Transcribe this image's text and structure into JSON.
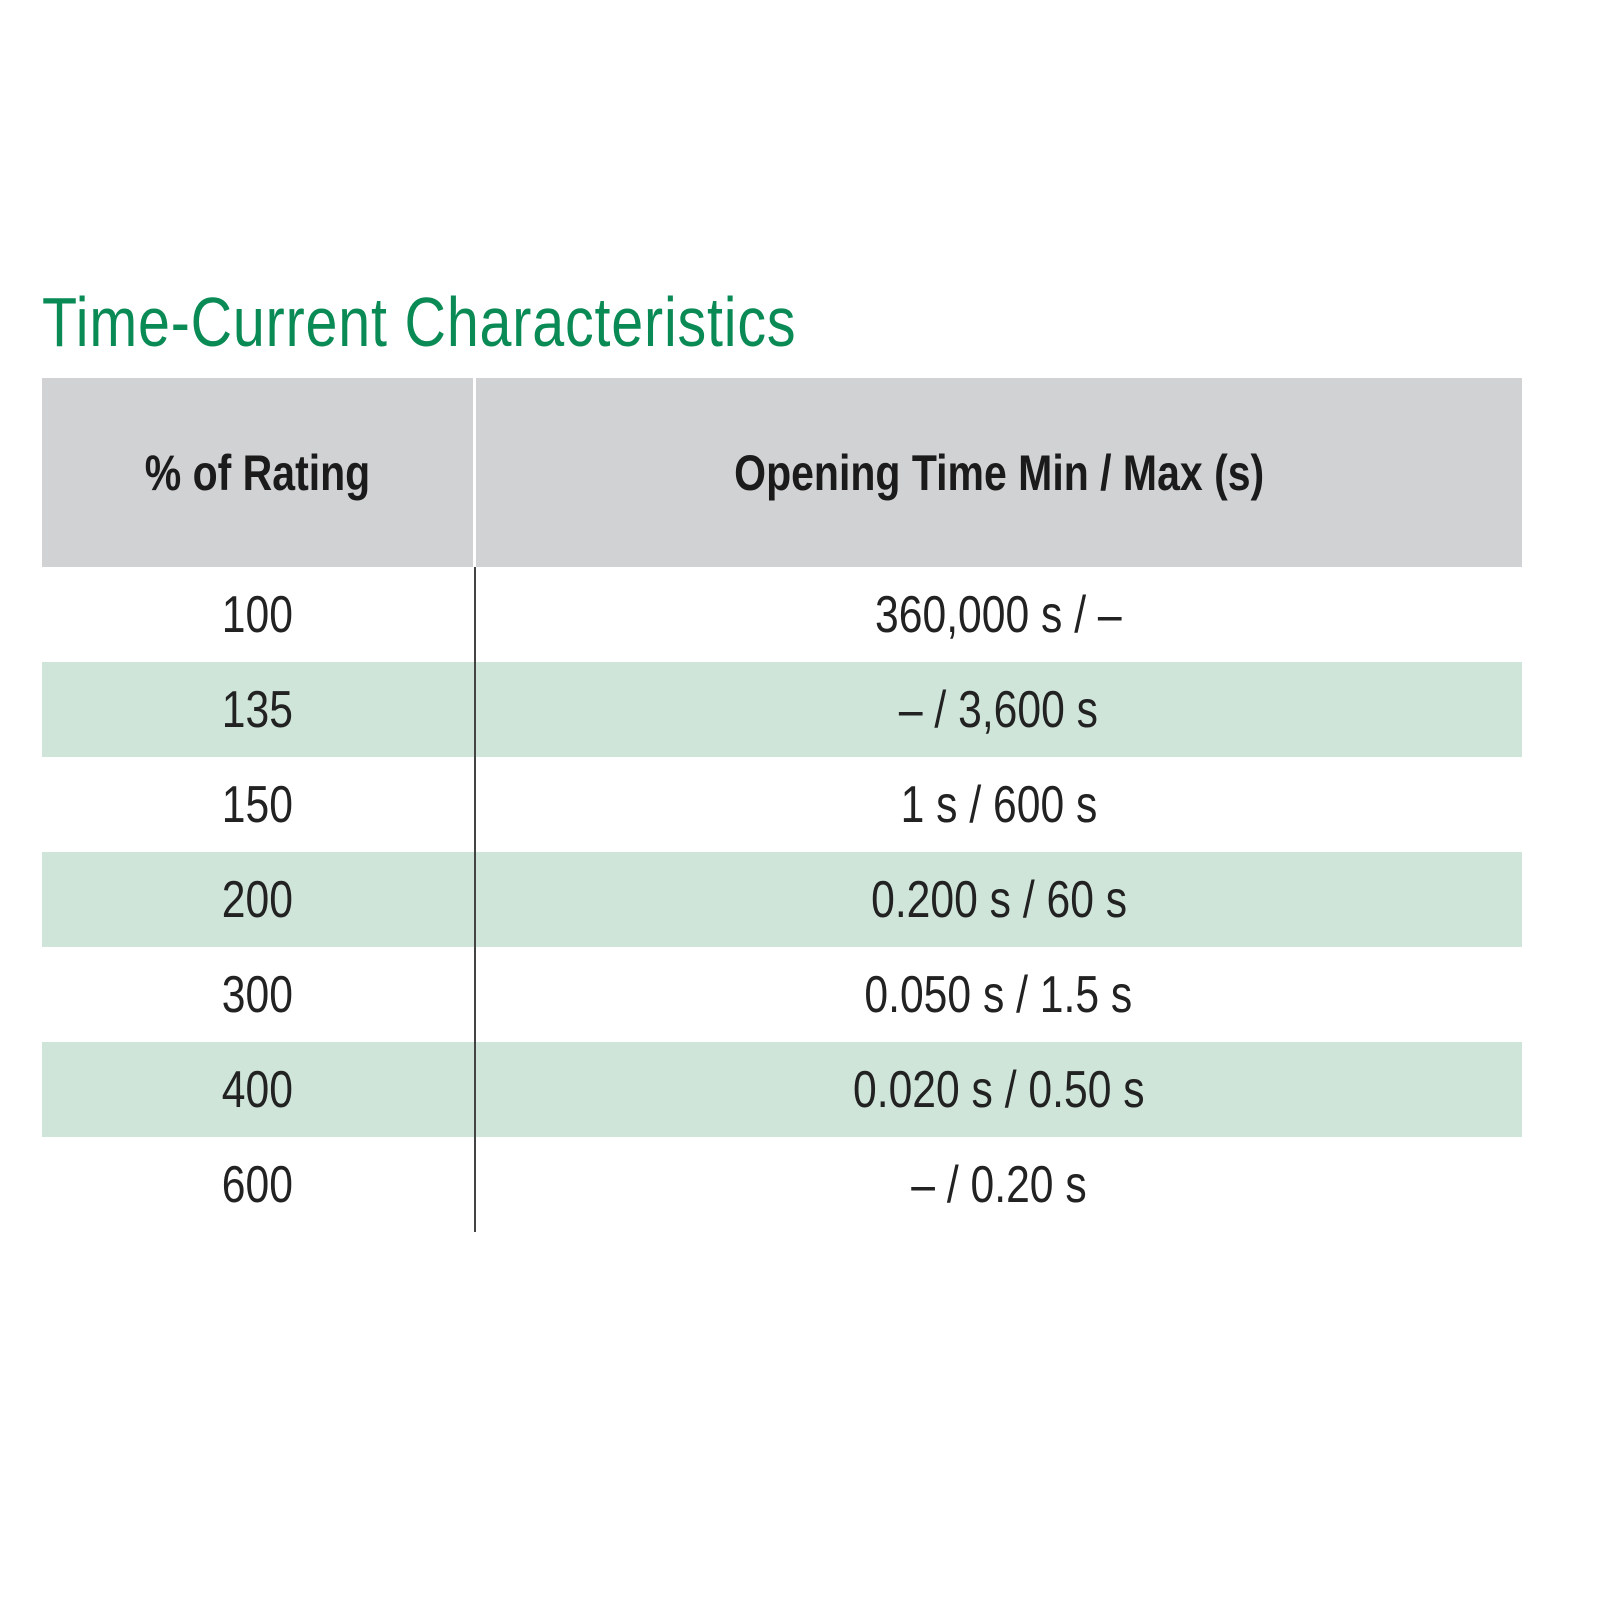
{
  "title": "Time-Current Characteristics",
  "colors": {
    "title": "#0a8a55",
    "header_bg": "#d1d2d4",
    "stripe_bg": "#cfe5d9"
  },
  "table": {
    "headers": [
      "% of Rating",
      "Opening Time Min / Max (s)"
    ],
    "rows": [
      [
        "100",
        "360,000 s / –"
      ],
      [
        "135",
        "– / 3,600 s"
      ],
      [
        "150",
        "1 s / 600 s"
      ],
      [
        "200",
        "0.200 s / 60 s"
      ],
      [
        "300",
        "0.050 s / 1.5 s"
      ],
      [
        "400",
        "0.020 s / 0.50 s"
      ],
      [
        "600",
        "– / 0.20 s"
      ]
    ]
  }
}
